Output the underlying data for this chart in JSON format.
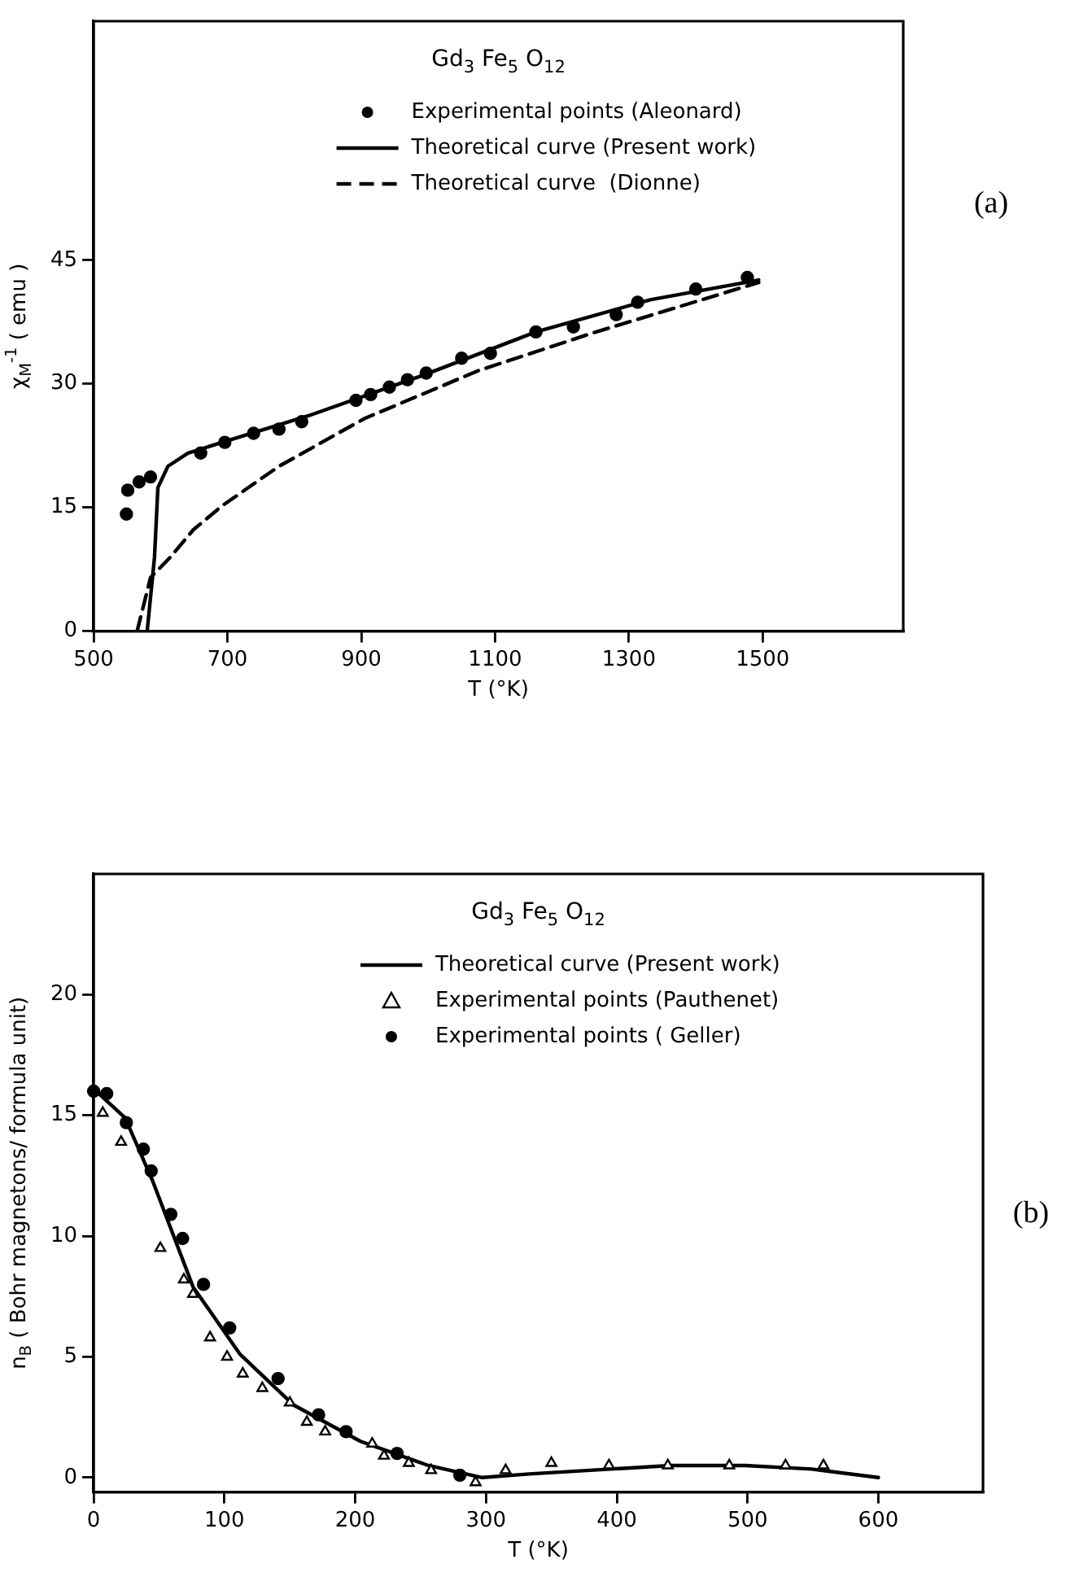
{
  "chart_data": [
    {
      "type": "line",
      "title": "Gd$_{3}$ Fe$_{5}$ O$_{12}$",
      "xlabel": "T (°K)",
      "ylabel": "χ$_{M}$$^{-1}$ ( emu )",
      "annotations": [
        "(a)"
      ],
      "legend": "top",
      "xlim": [
        500,
        1710
      ],
      "ylim": [
        0,
        74
      ],
      "xticks": [
        500,
        700,
        900,
        1100,
        1300,
        1500
      ],
      "yticks": [
        0,
        15,
        30,
        45
      ],
      "series": [
        {
          "name": "Experimental points (Aleonard)",
          "type": "scatter",
          "marker": "circle",
          "color": "#000000",
          "x": [
            549,
            551,
            568,
            585,
            660,
            696,
            739,
            777,
            811,
            892,
            914,
            942,
            969,
            997,
            1050,
            1093,
            1161,
            1217,
            1281,
            1313,
            1400,
            1477
          ],
          "values": [
            14.2,
            17.1,
            18.1,
            18.7,
            21.6,
            22.9,
            24.0,
            24.5,
            25.4,
            28.0,
            28.7,
            29.6,
            30.5,
            31.3,
            33.1,
            33.7,
            36.3,
            36.9,
            38.4,
            39.9,
            41.5,
            42.9
          ]
        },
        {
          "name": "Theoretical curve (Present work)",
          "type": "line",
          "marker": "none",
          "line_style": "solid",
          "color": "#000000",
          "x": [
            580,
            591,
            596,
            611,
            641,
            692,
            820,
            991,
            1161,
            1332,
            1494
          ],
          "values": [
            0,
            9,
            17.4,
            20,
            21.6,
            22.9,
            26.1,
            31,
            36.3,
            40.2,
            42.6
          ]
        },
        {
          "name": "Theoretical curve  (Dionne)",
          "type": "line",
          "marker": "none",
          "line_style": "dashed",
          "color": "#000000",
          "x": [
            565,
            585,
            615,
            649,
            692,
            777,
            905,
            1075,
            1247,
            1494
          ],
          "values": [
            0,
            6.5,
            9,
            12.3,
            15.2,
            20,
            25.8,
            31.6,
            36.2,
            42.3
          ]
        }
      ]
    },
    {
      "type": "line",
      "title": "Gd$_{3}$ Fe$_{5}$ O$_{12}$",
      "xlabel": "T (°K)",
      "ylabel": "n$_{B}$ ( Bohr magnetons/ formula unit)",
      "annotations": [
        "(b)"
      ],
      "legend": "top",
      "xlim": [
        0,
        680
      ],
      "ylim": [
        -0.6,
        25
      ],
      "xticks": [
        0,
        100,
        200,
        300,
        400,
        500,
        600
      ],
      "yticks": [
        0,
        5,
        10,
        15,
        20
      ],
      "series": [
        {
          "name": "Theoretical curve (Present work)",
          "type": "line",
          "marker": "none",
          "line_style": "solid",
          "color": "#000000",
          "x": [
            0,
            24,
            45,
            76,
            112,
            153,
            204,
            256,
            297,
            333,
            395,
            441,
            498,
            549,
            600
          ],
          "values": [
            16.1,
            14.9,
            12.3,
            7.9,
            5.1,
            3.0,
            1.5,
            0.5,
            0,
            0.15,
            0.35,
            0.5,
            0.5,
            0.35,
            0
          ]
        },
        {
          "name": "Experimental points (Pauthenet)",
          "type": "scatter",
          "marker": "triangle",
          "color": "#000000",
          "x": [
            7,
            21,
            51,
            69,
            76,
            89,
            102,
            114,
            129,
            150,
            163,
            177,
            213,
            222,
            241,
            258,
            292,
            315,
            350,
            394,
            439,
            486,
            529,
            558
          ],
          "values": [
            15.1,
            13.9,
            9.5,
            8.2,
            7.6,
            5.8,
            5.0,
            4.3,
            3.7,
            3.1,
            2.3,
            1.9,
            1.4,
            0.9,
            0.6,
            0.3,
            -0.2,
            0.3,
            0.6,
            0.5,
            0.5,
            0.5,
            0.5,
            0.5
          ]
        },
        {
          "name": "Experimental points ( Geller)",
          "type": "scatter",
          "marker": "circle",
          "color": "#000000",
          "x": [
            0,
            10,
            25,
            38,
            44,
            59,
            68,
            84,
            104,
            141,
            172,
            193,
            232,
            280
          ],
          "values": [
            16.0,
            15.9,
            14.7,
            13.6,
            12.7,
            10.9,
            9.9,
            8.0,
            6.2,
            4.1,
            2.6,
            1.9,
            1.0,
            0.1
          ]
        }
      ]
    }
  ]
}
